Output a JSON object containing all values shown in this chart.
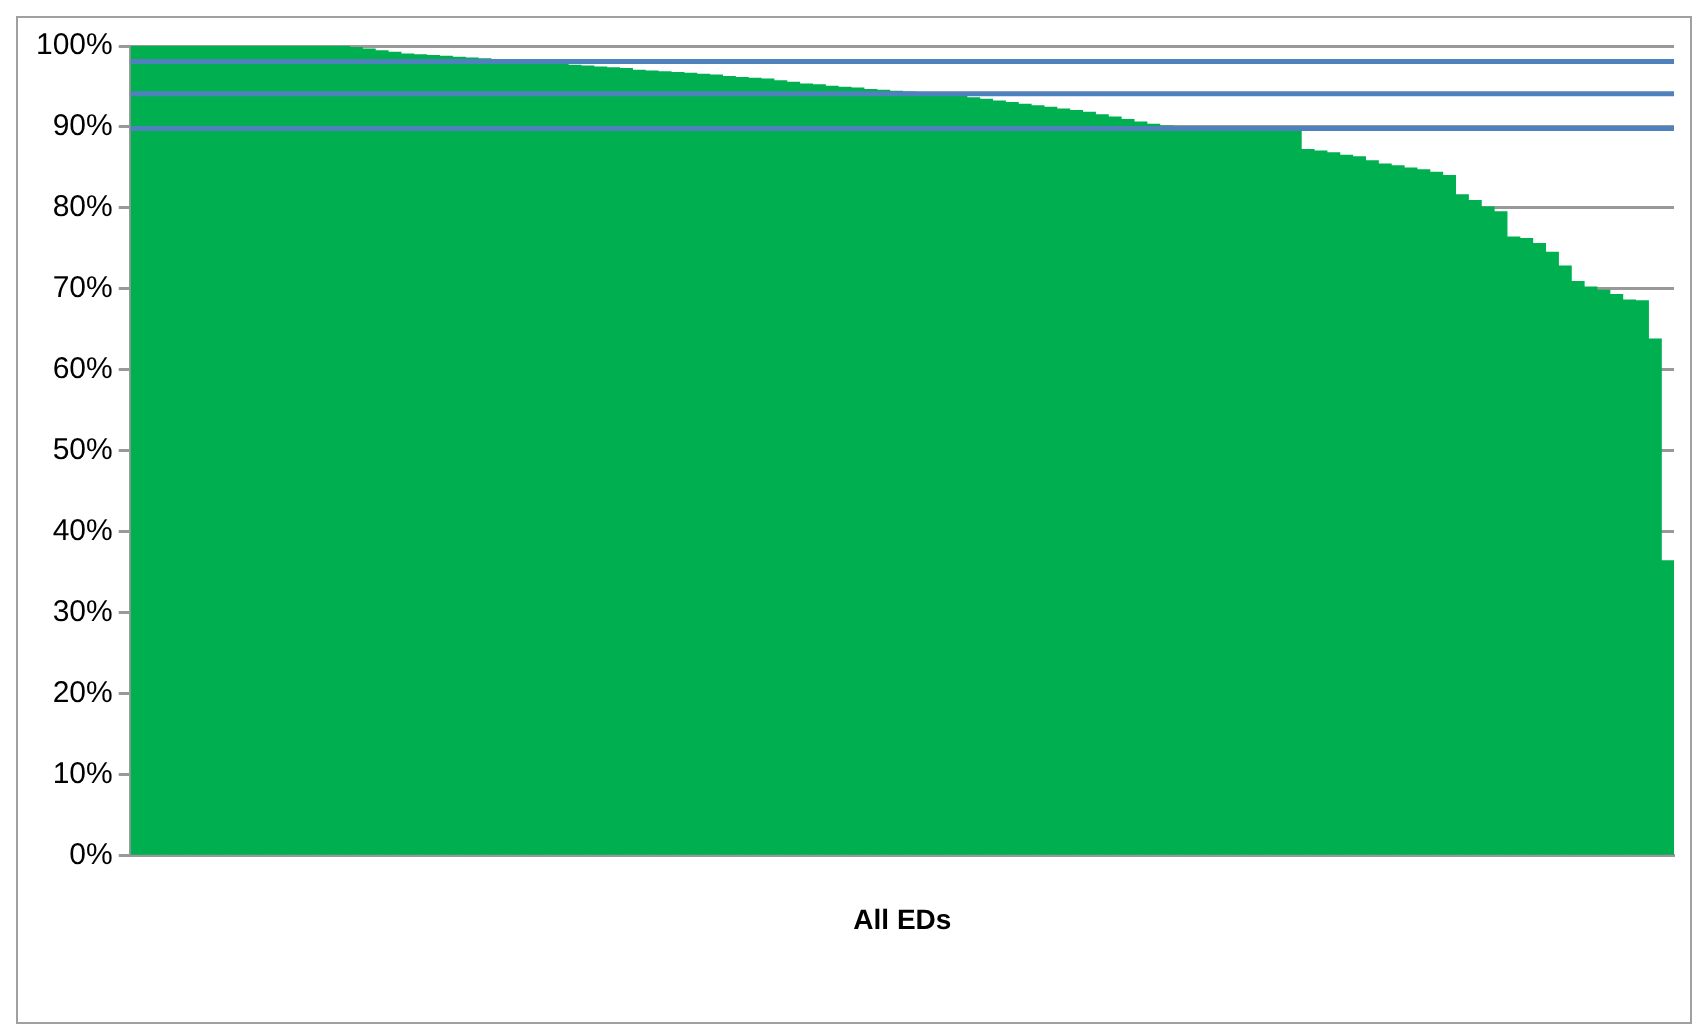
{
  "chart_data": {
    "type": "bar",
    "xlabel": "All EDs",
    "categories": [
      null,
      null,
      null,
      null,
      null,
      null,
      null,
      null,
      null,
      null,
      null,
      null,
      null,
      null,
      null,
      null,
      null,
      null,
      null,
      null,
      null,
      null,
      null,
      null,
      null,
      null,
      null,
      null,
      null,
      null,
      null,
      null,
      null,
      null,
      null,
      null,
      null,
      null,
      null,
      null,
      null,
      null,
      null,
      null,
      null,
      null,
      null,
      null,
      null,
      null,
      null,
      null,
      null,
      null,
      null,
      null,
      null,
      null,
      null,
      null,
      null,
      null,
      null,
      null,
      null,
      null,
      null,
      null,
      null,
      null,
      null,
      null,
      null,
      null,
      null,
      null,
      null,
      null,
      null,
      null,
      null,
      null,
      null,
      null,
      null,
      null,
      null,
      null,
      null,
      null,
      null,
      null,
      null,
      null,
      null,
      null,
      null,
      null,
      null,
      null,
      null,
      null,
      null,
      null,
      null,
      null,
      null,
      null,
      null,
      null,
      null,
      null,
      null,
      null,
      null,
      null,
      null,
      null,
      null,
      null
    ],
    "values": [
      100,
      100,
      100,
      100,
      100,
      100,
      100,
      100,
      100,
      100,
      100,
      100,
      100,
      100,
      100,
      100,
      100,
      99.8,
      99.6,
      99.4,
      99.2,
      99,
      98.9,
      98.8,
      98.7,
      98.6,
      98.5,
      98.4,
      98.3,
      98.2,
      98.1,
      97.9,
      97.8,
      97.7,
      97.6,
      97.5,
      97.4,
      97.3,
      97.2,
      97,
      96.9,
      96.8,
      96.7,
      96.6,
      96.5,
      96.4,
      96.2,
      96.1,
      96,
      95.9,
      95.7,
      95.5,
      95.3,
      95.2,
      95,
      94.9,
      94.8,
      94.6,
      94.5,
      94.4,
      94.3,
      94.2,
      94.1,
      94,
      93.8,
      93.6,
      93.4,
      93.2,
      93,
      92.8,
      92.6,
      92.4,
      92.2,
      92,
      91.8,
      91.5,
      91.2,
      90.9,
      90.6,
      90.3,
      90.1,
      90,
      89.9,
      89.9,
      89.8,
      89.8,
      89.7,
      89.7,
      89.6,
      89.6,
      89.5,
      87.2,
      87,
      86.8,
      86.5,
      86.3,
      85.8,
      85.4,
      85.2,
      84.9,
      84.7,
      84.4,
      84,
      81.6,
      80.9,
      80.1,
      79.5,
      76.4,
      76.2,
      75.6,
      74.5,
      72.8,
      70.9,
      70.2,
      69.8,
      69.3,
      68.6,
      68.5,
      63.8,
      36.4
    ],
    "color": "#00b050",
    "ylim": [
      0,
      100
    ],
    "yticks": [
      {
        "value": 0,
        "label": "0%"
      },
      {
        "value": 10,
        "label": "10%"
      },
      {
        "value": 20,
        "label": "20%"
      },
      {
        "value": 30,
        "label": "30%"
      },
      {
        "value": 40,
        "label": "40%"
      },
      {
        "value": 50,
        "label": "50%"
      },
      {
        "value": 60,
        "label": "60%"
      },
      {
        "value": 70,
        "label": "70%"
      },
      {
        "value": 80,
        "label": "80%"
      },
      {
        "value": 90,
        "label": "90%"
      },
      {
        "value": 100,
        "label": "100%"
      }
    ],
    "grid": "y",
    "legend": false,
    "ref_lines": [
      {
        "axis": "y",
        "value": 98.1,
        "color": "#4f81bd"
      },
      {
        "axis": "y",
        "value": 94.1,
        "color": "#4f81bd"
      },
      {
        "axis": "y",
        "value": 89.8,
        "color": "#4f81bd"
      }
    ]
  }
}
